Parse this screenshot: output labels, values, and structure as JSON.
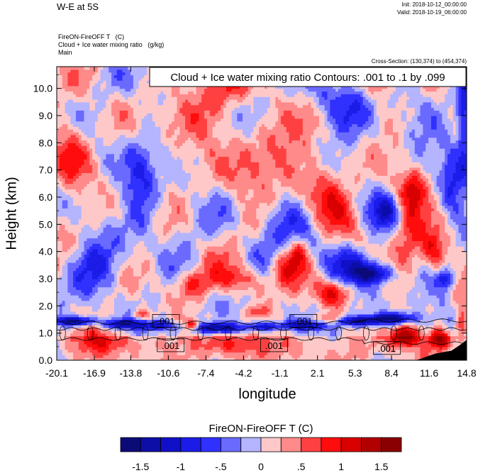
{
  "header": {
    "title": "W-E at 5S",
    "init": "Init: 2018-10-12_00:00:00",
    "valid": "Valid: 2018-10-19_06:00:00",
    "field_line1": "FireON-FireOFF T   (C)",
    "field_line2": "Cloud + Ice water mixing ratio   (g/kg)",
    "field_line3": "Main",
    "cross_section": "Cross-Section: (130,374) to (454,374)"
  },
  "chart_data": {
    "type": "heatmap",
    "subtitle_box": "Cloud + Ice water mixing ratio Contours: .001 to .1 by .099",
    "xlabel": "longitude",
    "ylabel": "Height (km)",
    "xlim": [
      -20.1,
      14.8
    ],
    "ylim": [
      0.0,
      10.8
    ],
    "x_ticks": [
      "-20.1",
      "-16.9",
      "-13.8",
      "-10.6",
      "-7.4",
      "-4.2",
      "-1.1",
      "2.1",
      "5.3",
      "8.4",
      "11.6",
      "14.8"
    ],
    "y_ticks": [
      "0.0",
      "1.0",
      "2.0",
      "3.0",
      "4.0",
      "5.0",
      "6.0",
      "7.0",
      "8.0",
      "9.0",
      "10.0"
    ],
    "contour_labels": [
      {
        "text": ".001",
        "lon": -10.8,
        "height": 1.45
      },
      {
        "text": ".001",
        "lon": -10.4,
        "height": 0.55
      },
      {
        "text": ".001",
        "lon": -1.6,
        "height": 0.55
      },
      {
        "text": ".001",
        "lon": 0.9,
        "height": 1.45
      },
      {
        "text": ".001",
        "lon": 8.0,
        "height": 0.45
      }
    ],
    "colorbar": {
      "title": "FireON-FireOFF T  (C)",
      "tick_labels": [
        "-1.5",
        "-1",
        "-.5",
        "0",
        ".5",
        "1",
        "1.5"
      ],
      "tick_values": [
        -1.5,
        -1,
        -0.5,
        0,
        0.5,
        1,
        1.5
      ],
      "levels": [
        -1.75,
        -1.5,
        -1.25,
        -1,
        -0.75,
        -0.5,
        -0.25,
        0,
        0.25,
        0.5,
        0.75,
        1,
        1.25,
        1.5,
        1.75
      ],
      "colors": [
        "#0b0b78",
        "#0d0da8",
        "#1010c8",
        "#1c1ce8",
        "#3030ff",
        "#6a6aff",
        "#b4b4ff",
        "#ffc8c8",
        "#ff8a8a",
        "#ff4040",
        "#ff0c0c",
        "#d80000",
        "#b00000",
        "#8a0000"
      ]
    },
    "anomalies": [
      {
        "lon": -18.5,
        "h": 1.45,
        "v": -1.8,
        "slon": 1.2,
        "sh": 0.12
      },
      {
        "lon": -14.5,
        "h": 1.35,
        "v": -1.5,
        "slon": 1.0,
        "sh": 0.12
      },
      {
        "lon": -11.5,
        "h": 1.3,
        "v": -1.2,
        "slon": 0.9,
        "sh": 0.12
      },
      {
        "lon": -6.5,
        "h": 1.2,
        "v": -1.6,
        "slon": 1.6,
        "sh": 0.14
      },
      {
        "lon": -2.5,
        "h": 1.25,
        "v": -1.1,
        "slon": 1.0,
        "sh": 0.1
      },
      {
        "lon": 1.0,
        "h": 1.3,
        "v": -1.2,
        "slon": 1.4,
        "sh": 0.12
      },
      {
        "lon": 5.5,
        "h": 1.45,
        "v": -1.5,
        "slon": 1.4,
        "sh": 0.12
      },
      {
        "lon": 8.5,
        "h": 1.55,
        "v": -1.7,
        "slon": 1.3,
        "sh": 0.15
      },
      {
        "lon": -12.8,
        "h": 1.7,
        "v": 0.8,
        "slon": 0.6,
        "sh": 0.15
      },
      {
        "lon": -8.5,
        "h": 1.3,
        "v": 1.2,
        "slon": 0.4,
        "sh": 0.12
      },
      {
        "lon": -3.0,
        "h": 1.8,
        "v": 0.7,
        "slon": 0.6,
        "sh": 0.14
      },
      {
        "lon": 3.0,
        "h": 1.5,
        "v": 0.9,
        "slon": 0.7,
        "sh": 0.15
      },
      {
        "lon": 9.5,
        "h": 0.9,
        "v": 1.5,
        "slon": 0.8,
        "sh": 0.25
      },
      {
        "lon": 12.5,
        "h": 0.8,
        "v": 1.6,
        "slon": 0.6,
        "sh": 0.25
      },
      {
        "lon": 14.4,
        "h": 1.2,
        "v": 1.0,
        "slon": 0.4,
        "sh": 0.4
      },
      {
        "lon": -4.5,
        "h": 3.0,
        "v": 0.9,
        "slon": 1.6,
        "sh": 0.4
      },
      {
        "lon": -8.5,
        "h": 2.8,
        "v": 0.7,
        "slon": 1.1,
        "sh": 0.35
      },
      {
        "lon": -0.5,
        "h": 3.5,
        "v": 0.8,
        "slon": 0.8,
        "sh": 0.5
      },
      {
        "lon": 3.6,
        "h": 2.5,
        "v": 1.1,
        "slon": 1.0,
        "sh": 0.35
      },
      {
        "lon": 5.4,
        "h": 3.5,
        "v": -0.9,
        "slon": 1.5,
        "sh": 0.5
      },
      {
        "lon": 7.0,
        "h": 3.2,
        "v": -1.4,
        "slon": 1.1,
        "sh": 0.25
      },
      {
        "lon": 9.8,
        "h": 4.5,
        "v": 0.8,
        "slon": 1.0,
        "sh": 1.0
      },
      {
        "lon": 10.2,
        "h": 6.3,
        "v": 0.9,
        "slon": 0.8,
        "sh": 0.5
      },
      {
        "lon": 13.5,
        "h": 6.8,
        "v": -0.7,
        "slon": 0.6,
        "sh": 1.0
      },
      {
        "lon": 14.6,
        "h": 8.8,
        "v": -1.2,
        "slon": 0.4,
        "sh": 1.4
      },
      {
        "lon": 12.0,
        "h": 4.0,
        "v": 0.8,
        "slon": 0.7,
        "sh": 0.5
      },
      {
        "lon": 13.0,
        "h": 3.0,
        "v": -1.0,
        "slon": 0.5,
        "sh": 0.25
      },
      {
        "lon": -13.0,
        "h": 6.5,
        "v": -0.7,
        "slon": 1.0,
        "sh": 1.2
      },
      {
        "lon": -19.0,
        "h": 7.5,
        "v": 0.6,
        "slon": 1.2,
        "sh": 1.5
      },
      {
        "lon": -2.5,
        "h": 7.2,
        "v": 0.6,
        "slon": 2.5,
        "sh": 1.2
      },
      {
        "lon": -1.5,
        "h": 5.0,
        "v": -0.6,
        "slon": 1.8,
        "sh": 0.8
      },
      {
        "lon": -17.0,
        "h": 3.5,
        "v": -0.6,
        "slon": 1.5,
        "sh": 0.8
      },
      {
        "lon": -9.0,
        "h": 9.0,
        "v": 0.5,
        "slon": 2.0,
        "sh": 0.8
      },
      {
        "lon": 5.0,
        "h": 9.5,
        "v": -0.6,
        "slon": 1.8,
        "sh": 0.7
      },
      {
        "lon": 3.0,
        "h": 6.0,
        "v": 0.6,
        "slon": 1.5,
        "sh": 1.0
      },
      {
        "lon": 7.5,
        "h": 10.3,
        "v": 0.8,
        "slon": 0.8,
        "sh": 0.4
      },
      {
        "lon": -5.5,
        "h": 10.2,
        "v": 0.6,
        "slon": 1.5,
        "sh": 0.5
      },
      {
        "lon": 0.5,
        "h": 4.0,
        "v": 0.7,
        "slon": 0.5,
        "sh": 0.4
      },
      {
        "lon": 8.0,
        "h": 5.5,
        "v": -0.8,
        "slon": 0.8,
        "sh": 0.4
      },
      {
        "lon": -15.5,
        "h": 0.7,
        "v": 0.6,
        "slon": 2.0,
        "sh": 0.3
      },
      {
        "lon": -4.0,
        "h": 0.6,
        "v": 0.5,
        "slon": 3.0,
        "sh": 0.3
      }
    ]
  }
}
